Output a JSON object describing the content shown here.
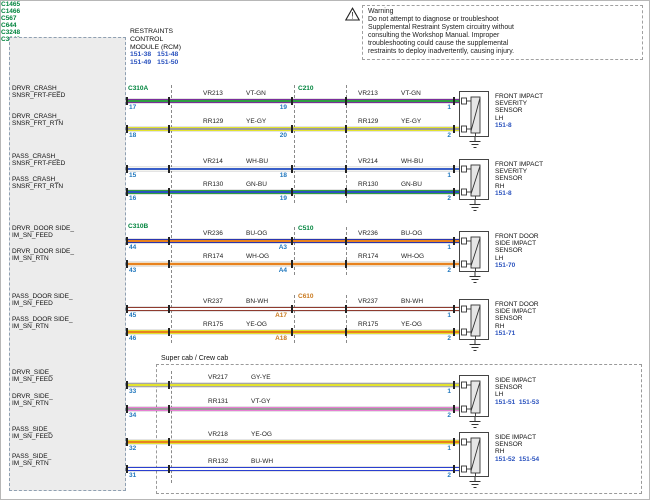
{
  "warning": {
    "icon": "!",
    "title": "Warning",
    "text": "Do not attempt to diagnose or troubleshoot Supplemental Restraint System circuitry without consulting the Workshop Manual. Improper troubleshooting could cause the supplemental restraints to deploy inadvertently, causing injury."
  },
  "rcm": {
    "name_lines": [
      "RESTRAINTS",
      "CONTROL",
      "MODULE (RCM)"
    ],
    "refs": [
      "151-38",
      "151-48",
      "151-49",
      "151-50"
    ],
    "connector_a": "C310A",
    "connector_b": "C310B"
  },
  "section_label": "Super cab / Crew cab",
  "mid_connectors": [
    {
      "label": "C210"
    },
    {
      "label": "C510"
    },
    {
      "label": "C610"
    }
  ],
  "rows": [
    {
      "signal_line1": "DRVR_CRASH_",
      "signal_line2": "SNSR_FRT-FEED",
      "rcm_pin": "17",
      "wire_id": "VR213",
      "color_code": "VT-GN",
      "mid_pin": "19",
      "end_pin": "1",
      "base": "#7b2d9b",
      "stripe": "#2f9e41"
    },
    {
      "signal_line1": "DRVR_CRASH_",
      "signal_line2": "SNSR_FRT_RTN",
      "rcm_pin": "18",
      "wire_id": "RR129",
      "color_code": "YE-GY",
      "mid_pin": "20",
      "end_pin": "2",
      "base": "#e3e32e",
      "stripe": "#9a9a9a"
    },
    {
      "signal_line1": "PASS_CRASH_",
      "signal_line2": "SNSR_FRT-FEED",
      "rcm_pin": "15",
      "wire_id": "VR214",
      "color_code": "WH-BU",
      "mid_pin": "18",
      "end_pin": "1",
      "base": "#f4f4ef",
      "stripe": "#3a5fc8"
    },
    {
      "signal_line1": "PASS_CRASH_",
      "signal_line2": "SNSR_FRT_RTN",
      "rcm_pin": "16",
      "wire_id": "RR130",
      "color_code": "GN-BU",
      "mid_pin": "19",
      "end_pin": "2",
      "base": "#2f9e41",
      "stripe": "#2a52be"
    },
    {
      "signal_line1": "DRVR_DOOR SIDE_",
      "signal_line2": "IM_SN_FEED",
      "rcm_pin": "44",
      "wire_id": "VR236",
      "color_code": "BU-OG",
      "mid_pin": "A3",
      "end_pin": "1",
      "base": "#2a35b0",
      "stripe": "#e8821e"
    },
    {
      "signal_line1": "DRVR_DOOR SIDE_",
      "signal_line2": "IM_SN_RTN",
      "rcm_pin": "43",
      "wire_id": "RR174",
      "color_code": "WH-OG",
      "mid_pin": "A4",
      "end_pin": "2",
      "base": "#efddc4",
      "stripe": "#e8821e"
    },
    {
      "signal_line1": "PASS_DOOR SIDE_",
      "signal_line2": "IM_SN_FEED",
      "rcm_pin": "45",
      "wire_id": "VR237",
      "color_code": "BN-WH",
      "mid_pin": "A17",
      "end_pin": "1",
      "base": "#8f3b2f",
      "stripe": "#ffffff",
      "mid_orange": true
    },
    {
      "signal_line1": "PASS_DOOR SIDE_",
      "signal_line2": "IM_SN_RTN",
      "rcm_pin": "46",
      "wire_id": "RR175",
      "color_code": "YE-OG",
      "mid_pin": "A18",
      "end_pin": "2",
      "base": "#e3e32e",
      "stripe": "#e8821e",
      "mid_orange": true
    },
    {
      "signal_line1": "DRVR_SIDE_",
      "signal_line2": "IM_SN_FEED",
      "rcm_pin": "33",
      "wire_id": "VR217",
      "color_code": "GY-YE",
      "end_pin": "1",
      "base": "#a6a6a6",
      "stripe": "#e3e32e"
    },
    {
      "signal_line1": "DRVR_SIDE_",
      "signal_line2": "IM_SN_RTN",
      "rcm_pin": "34",
      "wire_id": "RR131",
      "color_code": "VT-GY",
      "end_pin": "2",
      "base": "#e87fd4",
      "stripe": "#9a9a9a"
    },
    {
      "signal_line1": "PASS_SIDE_",
      "signal_line2": "IM_SN_FEED",
      "rcm_pin": "32",
      "wire_id": "VR218",
      "color_code": "YE-OG",
      "end_pin": "1",
      "base": "#e3e32e",
      "stripe": "#e8821e"
    },
    {
      "signal_line1": "PASS_SIDE_",
      "signal_line2": "IM_SN_RTN",
      "rcm_pin": "31",
      "wire_id": "RR132",
      "color_code": "BU-WH",
      "end_pin": "2",
      "base": "#2a3fd0",
      "stripe": "#ffffff"
    }
  ],
  "sensors": [
    {
      "connector": "C1465",
      "name_lines": [
        "FRONT IMPACT",
        "SEVERITY",
        "SENSOR"
      ],
      "side": "LH",
      "refs": "151-8"
    },
    {
      "connector": "C1466",
      "name_lines": [
        "FRONT IMPACT",
        "SEVERITY",
        "SENSOR"
      ],
      "side": "RH",
      "refs": "151-8"
    },
    {
      "connector": "C567",
      "name_lines": [
        "FRONT DOOR",
        "SIDE IMPACT",
        "SENSOR"
      ],
      "side": "LH",
      "refs": "151-70"
    },
    {
      "connector": "C644",
      "name_lines": [
        "FRONT DOOR",
        "SIDE IMPACT",
        "SENSOR"
      ],
      "side": "RH",
      "refs": "151-71"
    },
    {
      "connector": "C3248",
      "name_lines": [
        "SIDE IMPACT",
        "SENSOR"
      ],
      "side": "LH",
      "refs": "151-51  151-53"
    },
    {
      "connector": "C3249",
      "name_lines": [
        "SIDE IMPACT",
        "SENSOR"
      ],
      "side": "RH",
      "refs": "151-52  151-54"
    }
  ],
  "colors": {
    "connector_label": "#00843d",
    "pin": "#2178be",
    "reference": "#2a52be",
    "alt_pin": "#c9791e",
    "module_fill": "#ececec"
  }
}
